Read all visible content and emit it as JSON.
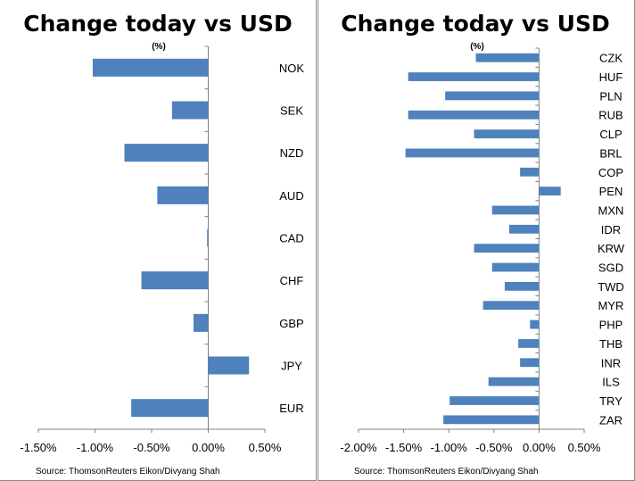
{
  "colors": {
    "bar": "#4f81bd",
    "axis": "#808080"
  },
  "chart_data": [
    {
      "type": "bar",
      "orientation": "horizontal",
      "title": "Change today vs USD",
      "unit_label": "(%)",
      "categories": [
        "NOK",
        "SEK",
        "NZD",
        "AUD",
        "CAD",
        "CHF",
        "GBP",
        "JPY",
        "EUR"
      ],
      "values": [
        -1.02,
        -0.32,
        -0.74,
        -0.45,
        -0.01,
        -0.59,
        -0.13,
        0.36,
        -0.68
      ],
      "xlim": [
        -1.5,
        0.5
      ],
      "ticks": [
        -1.5,
        -1.0,
        -0.5,
        0.0,
        0.5
      ],
      "tick_labels": [
        "-1.50%",
        "-1.00%",
        "-0.50%",
        "0.00%",
        "0.50%"
      ],
      "source": "Source: ThomsonReuters Eikon/Divyang Shah"
    },
    {
      "type": "bar",
      "orientation": "horizontal",
      "title": "Change today vs USD",
      "unit_label": "(%)",
      "categories": [
        "CZK",
        "HUF",
        "PLN",
        "RUB",
        "CLP",
        "BRL",
        "COP",
        "PEN",
        "MXN",
        "IDR",
        "KRW",
        "SGD",
        "TWD",
        "MYR",
        "PHP",
        "THB",
        "INR",
        "ILS",
        "TRY",
        "ZAR"
      ],
      "values": [
        -0.7,
        -1.45,
        -1.04,
        -1.45,
        -0.72,
        -1.48,
        -0.21,
        0.24,
        -0.52,
        -0.33,
        -0.72,
        -0.52,
        -0.38,
        -0.62,
        -0.1,
        -0.23,
        -0.21,
        -0.56,
        -0.99,
        -1.06
      ],
      "xlim": [
        -2.0,
        0.5
      ],
      "ticks": [
        -2.0,
        -1.5,
        -1.0,
        -0.5,
        0.0,
        0.5
      ],
      "tick_labels": [
        "-2.00%",
        "-1.50%",
        "-1.00%",
        "-0.50%",
        "0.00%",
        "0.50%"
      ],
      "source": "Source: ThomsonReuters Eikon/Divyang Shah"
    }
  ]
}
